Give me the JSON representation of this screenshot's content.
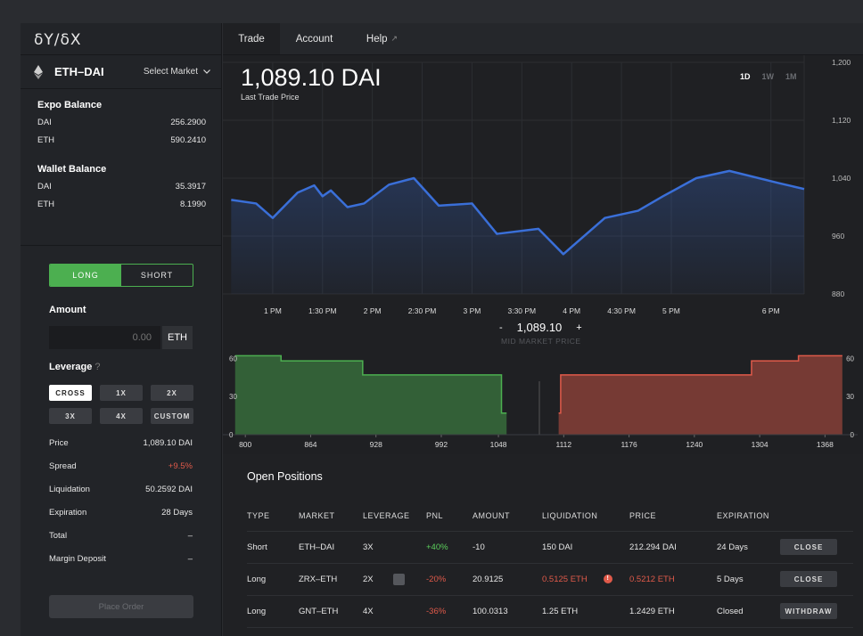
{
  "sidebar": {
    "logo": "δY/δX",
    "market": "ETH–DAI",
    "select_market": "Select Market",
    "expo_balance": {
      "title": "Expo Balance",
      "rows": [
        {
          "asset": "DAI",
          "value": "256.2900"
        },
        {
          "asset": "ETH",
          "value": "590.2410"
        }
      ]
    },
    "wallet_balance": {
      "title": "Wallet Balance",
      "rows": [
        {
          "asset": "DAI",
          "value": "35.3917"
        },
        {
          "asset": "ETH",
          "value": "8.1990"
        }
      ]
    },
    "order": {
      "long_label": "LONG",
      "short_label": "SHORT",
      "amount_label": "Amount",
      "amount_placeholder": "0.00",
      "amount_unit": "ETH",
      "leverage_label": "Leverage",
      "leverage_help": "?",
      "leverage_options": [
        "CROSS",
        "1X",
        "2X",
        "3X",
        "4X",
        "CUSTOM"
      ],
      "stats": [
        {
          "label": "Price",
          "value": "1,089.10 DAI"
        },
        {
          "label": "Spread",
          "value": "+9.5%"
        },
        {
          "label": "Liquidation",
          "value": "50.2592 DAI"
        },
        {
          "label": "Expiration",
          "value": "28 Days"
        },
        {
          "label": "Total",
          "value": "–"
        },
        {
          "label": "Margin Deposit",
          "value": "–"
        }
      ],
      "place_order_label": "Place Order"
    }
  },
  "nav": {
    "tabs": [
      "Trade",
      "Account",
      "Help"
    ],
    "help_ext_icon": "external-link-icon"
  },
  "price_panel": {
    "price": "1,089.10 DAI",
    "subtitle": "Last Trade Price",
    "timeframes": [
      "1D",
      "1W",
      "1M"
    ],
    "active_timeframe": "1D",
    "mid_market_price": "1,089.10",
    "mid_market_label": "MID MARKET PRICE",
    "minus_label": "-",
    "plus_label": "+"
  },
  "chart_data": [
    {
      "type": "area",
      "x": [
        "12:35 PM",
        "12:50 PM",
        "1:00 PM",
        "1:15 PM",
        "1:25 PM",
        "1:30 PM",
        "1:35 PM",
        "1:45 PM",
        "1:55 PM",
        "2:10 PM",
        "2:25 PM",
        "2:40 PM",
        "3:00 PM",
        "3:15 PM",
        "3:40 PM",
        "3:55 PM",
        "4:20 PM",
        "4:40 PM",
        "4:55 PM",
        "5:15 PM",
        "5:35 PM",
        "6:05 PM",
        "6:20 PM"
      ],
      "values": [
        1010,
        1005,
        985,
        1020,
        1030,
        1015,
        1023,
        1000,
        1005,
        1031,
        1040,
        1002,
        1005,
        963,
        970,
        935,
        985,
        995,
        1015,
        1040,
        1050,
        1033,
        1025
      ],
      "xticks": [
        "1 PM",
        "1:30 PM",
        "2 PM",
        "2:30 PM",
        "3 PM",
        "3:30 PM",
        "4 PM",
        "4:30 PM",
        "5 PM",
        "6 PM"
      ],
      "yticks": [
        "880",
        "960",
        "1,040",
        "1,120",
        "1,200"
      ],
      "ylim": [
        880,
        1200
      ],
      "color": "#3a6fd8"
    },
    {
      "type": "area",
      "bids": {
        "price": [
          790,
          835,
          835,
          915,
          915,
          1051,
          1051,
          1056
        ],
        "size": [
          62,
          62,
          58,
          58,
          47,
          47,
          17,
          17
        ],
        "color": "#4caf50"
      },
      "asks": {
        "price": [
          1107,
          1109,
          1109,
          1296,
          1296,
          1342,
          1342,
          1385
        ],
        "size": [
          17,
          17,
          47,
          47,
          58,
          58,
          62,
          62
        ],
        "color": "#e05a4a"
      },
      "xticks": [
        "800",
        "864",
        "928",
        "992",
        "1048",
        "1112",
        "1176",
        "1240",
        "1304",
        "1368"
      ],
      "yticks": [
        "0",
        "30",
        "60"
      ],
      "ylim": [
        0,
        70
      ]
    }
  ],
  "positions": {
    "title": "Open Positions",
    "headers": [
      "TYPE",
      "MARKET",
      "LEVERAGE",
      "PNL",
      "AMOUNT",
      "LIQUIDATION",
      "PRICE",
      "EXPIRATION",
      ""
    ],
    "rows": [
      {
        "type": "Short",
        "market": "ETH–DAI",
        "leverage": "3X",
        "pnl": "+40%",
        "pnl_color": "#5ccf5c",
        "amount": "-10",
        "liquidation": "150 DAI",
        "liq_warn": false,
        "price": "212.294 DAI",
        "price_warn": false,
        "expiration": "24 Days",
        "action": "CLOSE",
        "editable": false
      },
      {
        "type": "Long",
        "market": "ZRX–ETH",
        "leverage": "2X",
        "pnl": "-20%",
        "pnl_color": "#e05a4a",
        "amount": "20.9125",
        "liquidation": "0.5125 ETH",
        "liq_warn": true,
        "price": "0.5212 ETH",
        "price_warn": true,
        "expiration": "5 Days",
        "action": "CLOSE",
        "editable": true
      },
      {
        "type": "Long",
        "market": "GNT–ETH",
        "leverage": "4X",
        "pnl": "-36%",
        "pnl_color": "#e05a4a",
        "amount": "100.0313",
        "liquidation": "1.25 ETH",
        "liq_warn": false,
        "price": "1.2429 ETH",
        "price_warn": false,
        "expiration": "Closed",
        "action": "WITHDRAW",
        "editable": false
      }
    ]
  }
}
